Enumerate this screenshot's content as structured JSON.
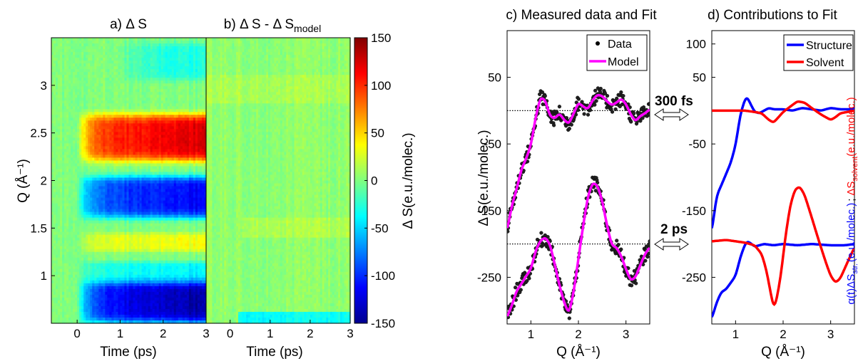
{
  "colors": {
    "data_points": "#000000",
    "model": "#ff00ff",
    "structure": "#0000ff",
    "solvent": "#ff0000",
    "zero_line": "#000000"
  },
  "chart_data": [
    {
      "panel": "a",
      "type": "heatmap",
      "title": "a) Δ S",
      "xlabel": "Time (ps)",
      "ylabel": "Q (Å⁻¹)",
      "xlim": [
        -0.6,
        3.0
      ],
      "ylim": [
        0.5,
        3.5
      ],
      "x_ticks": [
        "0",
        "1",
        "2",
        "3"
      ],
      "y_ticks": [
        "1",
        "1.5",
        "2",
        "2.5",
        "3"
      ],
      "features": [
        {
          "q_range": [
            0.5,
            0.95
          ],
          "t_start": 0.0,
          "value": -140,
          "note": "strong negative band at low Q"
        },
        {
          "q_range": [
            0.95,
            1.15
          ],
          "t_start": 0.0,
          "value": -40
        },
        {
          "q_range": [
            1.25,
            1.45
          ],
          "t_start": 0.1,
          "value": 35
        },
        {
          "q_range": [
            1.6,
            2.05
          ],
          "t_start": 0.1,
          "value": -115
        },
        {
          "q_range": [
            2.2,
            2.7
          ],
          "t_start": 0.1,
          "value": 125
        },
        {
          "q_range": [
            3.05,
            3.45
          ],
          "t_start": 0.8,
          "value": -30
        }
      ]
    },
    {
      "panel": "b",
      "type": "heatmap",
      "title": "b) Δ S  -  Δ S",
      "title_subscript": "model",
      "xlabel": "Time (ps)",
      "xlim": [
        -0.6,
        3.0
      ],
      "ylim": [
        0.5,
        3.5
      ],
      "x_ticks": [
        "0",
        "1",
        "2",
        "3"
      ],
      "colorbar": {
        "label": "Δ S(e.u./molec.)",
        "range": [
          -150,
          150
        ],
        "ticks": [
          "150",
          "100",
          "50",
          "0",
          "-50",
          "-100",
          "-150"
        ]
      }
    },
    {
      "panel": "c",
      "type": "scatter",
      "title": "c) Measured data and Fit",
      "xlabel": "Q (Å⁻¹)",
      "ylabel": "Δ S(e.u./molec.)",
      "xlim": [
        0.5,
        3.5
      ],
      "ylim": [
        -320,
        120
      ],
      "x_ticks": [
        "1",
        "2",
        "3"
      ],
      "y_ticks": [
        "50",
        "-50",
        "-150",
        "-250"
      ],
      "legend": [
        "Data",
        "Model"
      ],
      "legend_position": "top-right",
      "annotations": [
        "300 fs",
        "2 ps"
      ],
      "series": [
        {
          "name": "Model",
          "delay": "300 fs",
          "offset": 0,
          "x": [
            0.5,
            0.6,
            0.7,
            0.8,
            0.9,
            1.0,
            1.1,
            1.2,
            1.3,
            1.4,
            1.5,
            1.6,
            1.7,
            1.8,
            1.9,
            2.0,
            2.1,
            2.2,
            2.3,
            2.4,
            2.5,
            2.6,
            2.7,
            2.8,
            2.9,
            3.0,
            3.1,
            3.2,
            3.3,
            3.4,
            3.5
          ],
          "y": [
            -180,
            -142,
            -118,
            -88,
            -72,
            -52,
            -10,
            20,
            16,
            -8,
            -12,
            -4,
            -14,
            -20,
            -4,
            12,
            6,
            2,
            16,
            24,
            22,
            14,
            8,
            12,
            18,
            10,
            -6,
            -16,
            -8,
            -4,
            2
          ]
        },
        {
          "name": "Model",
          "delay": "2 ps",
          "offset": -200,
          "x": [
            0.5,
            0.6,
            0.7,
            0.8,
            0.9,
            1.0,
            1.1,
            1.2,
            1.3,
            1.4,
            1.5,
            1.6,
            1.7,
            1.8,
            1.9,
            2.0,
            2.1,
            2.2,
            2.3,
            2.4,
            2.5,
            2.6,
            2.7,
            2.8,
            2.9,
            3.0,
            3.1,
            3.2,
            3.3,
            3.4,
            3.5
          ],
          "y": [
            -310,
            -292,
            -270,
            -260,
            -248,
            -238,
            -210,
            -195,
            -190,
            -200,
            -230,
            -262,
            -288,
            -305,
            -272,
            -222,
            -172,
            -128,
            -108,
            -112,
            -135,
            -172,
            -202,
            -205,
            -218,
            -238,
            -255,
            -250,
            -232,
            -215,
            -205
          ]
        }
      ]
    },
    {
      "panel": "d",
      "type": "line",
      "title": "d) Contributions to Fit",
      "xlabel": "Q (Å⁻¹)",
      "ylabel_structure": "α(t)ΔS",
      "ylabel_structure_sub": "str.",
      "ylabel_structure_unit": "(e.u./molec.)",
      "ylabel_separator": ";",
      "ylabel_solvent": "ΔS",
      "ylabel_solvent_sub": "solvent",
      "ylabel_solvent_unit": "(e.u./molec.)",
      "xlim": [
        0.5,
        3.5
      ],
      "ylim": [
        -320,
        120
      ],
      "x_ticks": [
        "1",
        "2",
        "3"
      ],
      "y_ticks": [
        "100",
        "50",
        "-50",
        "-150",
        "-250"
      ],
      "legend": [
        "Structure",
        "Solvent"
      ],
      "legend_position": "top-right",
      "series": [
        {
          "name": "Structure",
          "delay": "300 fs",
          "x": [
            0.5,
            0.6,
            0.7,
            0.8,
            0.9,
            1.0,
            1.1,
            1.2,
            1.25,
            1.3,
            1.4,
            1.5,
            1.6,
            1.7,
            1.8,
            2.0,
            2.2,
            2.4,
            2.6,
            2.8,
            3.0,
            3.2,
            3.4,
            3.5
          ],
          "y": [
            -182,
            -128,
            -112,
            -95,
            -78,
            -52,
            -6,
            18,
            20,
            12,
            -2,
            -4,
            0,
            4,
            2,
            2,
            0,
            4,
            2,
            0,
            4,
            2,
            2,
            4
          ]
        },
        {
          "name": "Solvent",
          "delay": "300 fs",
          "x": [
            0.5,
            0.8,
            1.0,
            1.2,
            1.4,
            1.55,
            1.7,
            1.8,
            1.9,
            2.0,
            2.15,
            2.3,
            2.45,
            2.6,
            2.8,
            3.0,
            3.1,
            3.2,
            3.35,
            3.5
          ],
          "y": [
            0,
            0,
            0,
            0,
            -2,
            -4,
            -14,
            -18,
            -10,
            -2,
            6,
            14,
            12,
            4,
            -6,
            -14,
            -10,
            -4,
            -2,
            0
          ]
        },
        {
          "name": "Structure",
          "delay": "2 ps",
          "x": [
            0.5,
            0.6,
            0.7,
            0.8,
            0.9,
            1.0,
            1.1,
            1.2,
            1.25,
            1.3,
            1.4,
            1.6,
            1.8,
            2.0,
            2.3,
            2.6,
            3.0,
            3.3,
            3.5
          ],
          "y": [
            -312,
            -288,
            -272,
            -268,
            -258,
            -248,
            -220,
            -200,
            -196,
            -198,
            -204,
            -200,
            -202,
            -200,
            -202,
            -200,
            -202,
            -202,
            -200
          ]
        },
        {
          "name": "Solvent",
          "delay": "2 ps",
          "x": [
            0.5,
            0.8,
            1.0,
            1.2,
            1.4,
            1.55,
            1.65,
            1.75,
            1.8,
            1.85,
            1.95,
            2.05,
            2.15,
            2.25,
            2.35,
            2.45,
            2.6,
            2.75,
            2.9,
            3.0,
            3.1,
            3.2,
            3.35,
            3.5
          ],
          "y": [
            -196,
            -194,
            -196,
            -198,
            -202,
            -215,
            -240,
            -278,
            -296,
            -288,
            -248,
            -188,
            -142,
            -118,
            -114,
            -126,
            -160,
            -195,
            -228,
            -248,
            -258,
            -252,
            -228,
            -205
          ]
        }
      ]
    }
  ]
}
